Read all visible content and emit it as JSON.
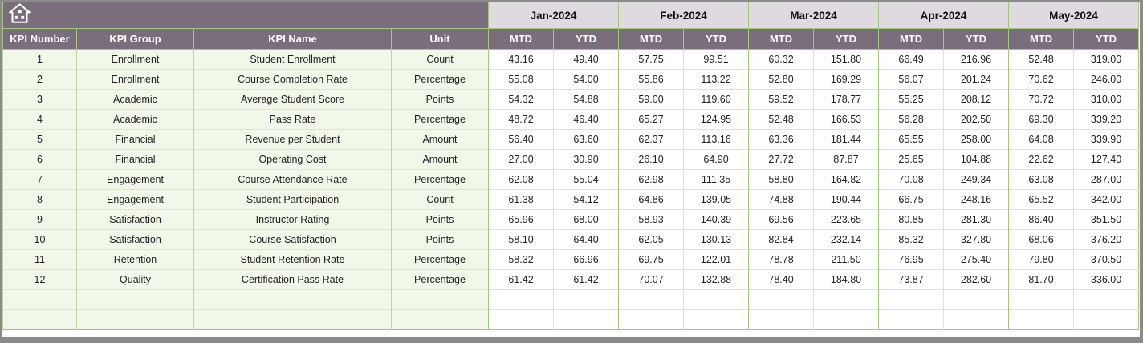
{
  "table": {
    "corner_icon": "home-icon",
    "left_columns": [
      "KPI Number",
      "KPI Group",
      "KPI Name",
      "Unit"
    ],
    "months": [
      "Jan-2024",
      "Feb-2024",
      "Mar-2024",
      "Apr-2024",
      "May-2024"
    ],
    "period_columns": [
      "MTD",
      "YTD"
    ],
    "rows": [
      {
        "kpi_number": "1",
        "kpi_group": "Enrollment",
        "kpi_name": "Student Enrollment",
        "unit": "Count",
        "values": [
          "43.16",
          "49.40",
          "57.75",
          "99.51",
          "60.32",
          "151.80",
          "66.49",
          "216.96",
          "52.48",
          "319.00"
        ]
      },
      {
        "kpi_number": "2",
        "kpi_group": "Enrollment",
        "kpi_name": "Course Completion Rate",
        "unit": "Percentage",
        "values": [
          "55.08",
          "54.00",
          "55.86",
          "113.22",
          "52.80",
          "169.29",
          "56.07",
          "201.24",
          "70.62",
          "246.00"
        ]
      },
      {
        "kpi_number": "3",
        "kpi_group": "Academic",
        "kpi_name": "Average Student Score",
        "unit": "Points",
        "values": [
          "54.32",
          "54.88",
          "59.00",
          "119.60",
          "59.52",
          "178.77",
          "55.25",
          "208.12",
          "70.72",
          "310.00"
        ]
      },
      {
        "kpi_number": "4",
        "kpi_group": "Academic",
        "kpi_name": "Pass Rate",
        "unit": "Percentage",
        "values": [
          "48.72",
          "46.40",
          "65.27",
          "124.95",
          "52.48",
          "166.53",
          "56.28",
          "202.50",
          "69.30",
          "339.20"
        ]
      },
      {
        "kpi_number": "5",
        "kpi_group": "Financial",
        "kpi_name": "Revenue per Student",
        "unit": "Amount",
        "values": [
          "56.40",
          "63.60",
          "62.37",
          "113.16",
          "63.36",
          "181.44",
          "65.55",
          "258.00",
          "64.08",
          "339.90"
        ]
      },
      {
        "kpi_number": "6",
        "kpi_group": "Financial",
        "kpi_name": "Operating Cost",
        "unit": "Amount",
        "values": [
          "27.00",
          "30.90",
          "26.10",
          "64.90",
          "27.72",
          "87.87",
          "25.65",
          "104.88",
          "22.62",
          "127.40"
        ]
      },
      {
        "kpi_number": "7",
        "kpi_group": "Engagement",
        "kpi_name": "Course Attendance Rate",
        "unit": "Percentage",
        "values": [
          "62.08",
          "55.04",
          "62.98",
          "111.35",
          "58.80",
          "164.82",
          "70.08",
          "249.34",
          "63.08",
          "287.00"
        ]
      },
      {
        "kpi_number": "8",
        "kpi_group": "Engagement",
        "kpi_name": "Student Participation",
        "unit": "Count",
        "values": [
          "61.38",
          "54.12",
          "64.86",
          "139.05",
          "74.88",
          "190.44",
          "66.75",
          "248.16",
          "65.52",
          "342.00"
        ]
      },
      {
        "kpi_number": "9",
        "kpi_group": "Satisfaction",
        "kpi_name": "Instructor Rating",
        "unit": "Points",
        "values": [
          "65.96",
          "68.00",
          "58.93",
          "140.39",
          "69.56",
          "223.65",
          "80.85",
          "281.30",
          "86.40",
          "351.50"
        ]
      },
      {
        "kpi_number": "10",
        "kpi_group": "Satisfaction",
        "kpi_name": "Course Satisfaction",
        "unit": "Points",
        "values": [
          "58.10",
          "64.40",
          "62.05",
          "130.13",
          "82.84",
          "232.14",
          "85.32",
          "327.80",
          "68.06",
          "376.20"
        ]
      },
      {
        "kpi_number": "11",
        "kpi_group": "Retention",
        "kpi_name": "Student Retention Rate",
        "unit": "Percentage",
        "values": [
          "58.32",
          "66.96",
          "69.75",
          "122.01",
          "78.78",
          "211.50",
          "76.95",
          "275.40",
          "79.80",
          "370.50"
        ]
      },
      {
        "kpi_number": "12",
        "kpi_group": "Quality",
        "kpi_name": "Certification Pass Rate",
        "unit": "Percentage",
        "values": [
          "61.42",
          "61.42",
          "70.07",
          "132.88",
          "78.40",
          "184.80",
          "73.87",
          "282.60",
          "81.70",
          "336.00"
        ]
      }
    ],
    "empty_row_count": 2
  },
  "colors": {
    "header_bg": "#7A6E7C",
    "month_band_bg": "#DEDAE0",
    "grid_green": "#A3C77D",
    "row_tint": "#F1F8EA",
    "frame_gray": "#8a8a8a"
  }
}
